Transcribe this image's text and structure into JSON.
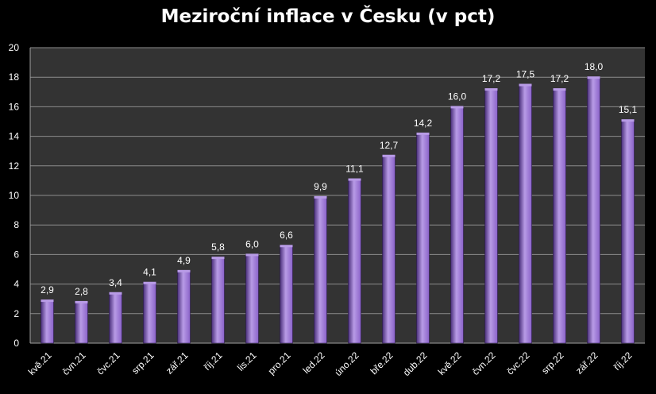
{
  "chart_data": {
    "type": "bar",
    "title": "Meziroční inflace v Česku (v pct)",
    "xlabel": "",
    "ylabel": "",
    "categories": [
      "kvě.21",
      "čvn.21",
      "čvc.21",
      "srp.21",
      "zář.21",
      "říj.21",
      "lis.21",
      "pro.21",
      "led.22",
      "úno.22",
      "bře.22",
      "dub.22",
      "kvě.22",
      "čvn.22",
      "čvc.22",
      "srp.22",
      "zář.22",
      "říj.22"
    ],
    "values": [
      2.9,
      2.8,
      3.4,
      4.1,
      4.9,
      5.8,
      6.0,
      6.6,
      9.9,
      11.1,
      12.7,
      14.2,
      16.0,
      17.2,
      17.5,
      17.2,
      18.0,
      15.1
    ],
    "data_labels": [
      "2,9",
      "2,8",
      "3,4",
      "4,1",
      "4,9",
      "5,8",
      "6,0",
      "6,6",
      "9,9",
      "11,1",
      "12,7",
      "14,2",
      "16,0",
      "17,2",
      "17,5",
      "17,2",
      "18,0",
      "15,1"
    ],
    "ylim": [
      0,
      20
    ],
    "yticks": [
      0,
      2,
      4,
      6,
      8,
      10,
      12,
      14,
      16,
      18,
      20
    ],
    "grid": true,
    "legend": "none",
    "colors": {
      "bar": "#8a62c8",
      "bar_dark": "#4a2f7a",
      "bar_light": "#b89be6",
      "plot_background": "#333333",
      "gridline": "#8c8c8c",
      "text": "#ffffff"
    }
  }
}
